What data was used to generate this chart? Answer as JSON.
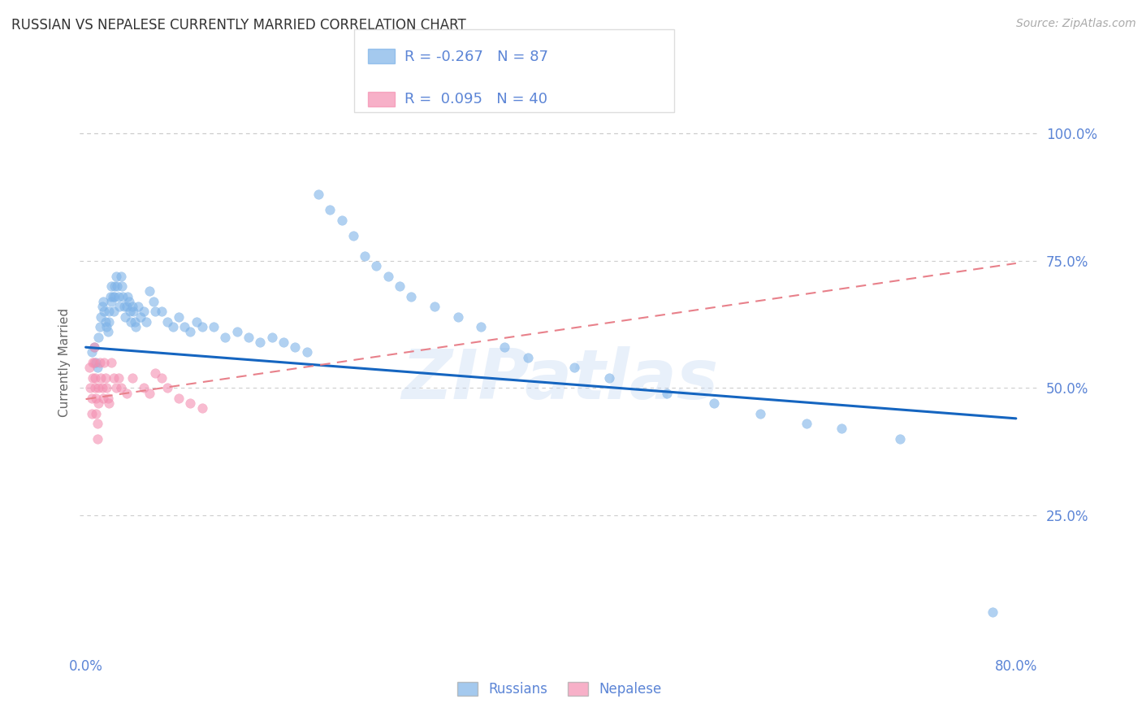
{
  "title": "RUSSIAN VS NEPALESE CURRENTLY MARRIED CORRELATION CHART",
  "source": "Source: ZipAtlas.com",
  "ylabel": "Currently Married",
  "ytick_labels": [
    "100.0%",
    "75.0%",
    "50.0%",
    "25.0%"
  ],
  "ytick_values": [
    1.0,
    0.75,
    0.5,
    0.25
  ],
  "xlim": [
    -0.005,
    0.82
  ],
  "ylim": [
    -0.02,
    1.12
  ],
  "watermark": "ZIPatlas",
  "legend_russian_R": "-0.267",
  "legend_russian_N": "87",
  "legend_nepalese_R": "0.095",
  "legend_nepalese_N": "40",
  "russian_color": "#7eb3e8",
  "nepalese_color": "#f48fb1",
  "russian_line_color": "#1565c0",
  "nepalese_line_color": "#e8808a",
  "title_color": "#333333",
  "axis_color": "#5c85d6",
  "grid_color": "#cccccc",
  "background_color": "#ffffff",
  "russian_x": [
    0.005,
    0.007,
    0.009,
    0.01,
    0.011,
    0.012,
    0.013,
    0.014,
    0.015,
    0.016,
    0.017,
    0.018,
    0.019,
    0.02,
    0.02,
    0.021,
    0.022,
    0.022,
    0.023,
    0.024,
    0.025,
    0.025,
    0.026,
    0.027,
    0.028,
    0.029,
    0.03,
    0.031,
    0.032,
    0.033,
    0.034,
    0.035,
    0.036,
    0.037,
    0.038,
    0.039,
    0.04,
    0.041,
    0.042,
    0.043,
    0.045,
    0.047,
    0.05,
    0.052,
    0.055,
    0.058,
    0.06,
    0.065,
    0.07,
    0.075,
    0.08,
    0.085,
    0.09,
    0.095,
    0.1,
    0.11,
    0.12,
    0.13,
    0.14,
    0.15,
    0.16,
    0.17,
    0.18,
    0.19,
    0.2,
    0.21,
    0.22,
    0.23,
    0.24,
    0.25,
    0.26,
    0.27,
    0.28,
    0.3,
    0.32,
    0.34,
    0.36,
    0.38,
    0.42,
    0.45,
    0.5,
    0.54,
    0.58,
    0.62,
    0.65,
    0.7,
    0.78
  ],
  "russian_y": [
    0.57,
    0.58,
    0.55,
    0.54,
    0.6,
    0.62,
    0.64,
    0.66,
    0.67,
    0.65,
    0.63,
    0.62,
    0.61,
    0.65,
    0.63,
    0.68,
    0.7,
    0.67,
    0.68,
    0.65,
    0.7,
    0.68,
    0.72,
    0.7,
    0.68,
    0.66,
    0.72,
    0.7,
    0.68,
    0.66,
    0.64,
    0.66,
    0.68,
    0.67,
    0.65,
    0.63,
    0.66,
    0.65,
    0.63,
    0.62,
    0.66,
    0.64,
    0.65,
    0.63,
    0.69,
    0.67,
    0.65,
    0.65,
    0.63,
    0.62,
    0.64,
    0.62,
    0.61,
    0.63,
    0.62,
    0.62,
    0.6,
    0.61,
    0.6,
    0.59,
    0.6,
    0.59,
    0.58,
    0.57,
    0.88,
    0.85,
    0.83,
    0.8,
    0.76,
    0.74,
    0.72,
    0.7,
    0.68,
    0.66,
    0.64,
    0.62,
    0.58,
    0.56,
    0.54,
    0.52,
    0.49,
    0.47,
    0.45,
    0.43,
    0.42,
    0.4,
    0.06
  ],
  "nepalese_x": [
    0.003,
    0.004,
    0.005,
    0.005,
    0.006,
    0.006,
    0.007,
    0.007,
    0.008,
    0.008,
    0.009,
    0.009,
    0.01,
    0.01,
    0.011,
    0.011,
    0.012,
    0.013,
    0.014,
    0.015,
    0.016,
    0.017,
    0.018,
    0.019,
    0.02,
    0.022,
    0.024,
    0.026,
    0.028,
    0.03,
    0.035,
    0.04,
    0.05,
    0.055,
    0.06,
    0.065,
    0.07,
    0.08,
    0.09,
    0.1
  ],
  "nepalese_y": [
    0.54,
    0.5,
    0.48,
    0.45,
    0.55,
    0.52,
    0.58,
    0.55,
    0.52,
    0.5,
    0.48,
    0.45,
    0.43,
    0.4,
    0.5,
    0.47,
    0.55,
    0.52,
    0.5,
    0.48,
    0.55,
    0.52,
    0.5,
    0.48,
    0.47,
    0.55,
    0.52,
    0.5,
    0.52,
    0.5,
    0.49,
    0.52,
    0.5,
    0.49,
    0.53,
    0.52,
    0.5,
    0.48,
    0.47,
    0.46
  ],
  "russian_line_x0": 0.0,
  "russian_line_y0": 0.58,
  "russian_line_x1": 0.8,
  "russian_line_y1": 0.44,
  "nepalese_line_x0": 0.0,
  "nepalese_line_y0": 0.478,
  "nepalese_line_x1": 0.8,
  "nepalese_line_y1": 0.745
}
